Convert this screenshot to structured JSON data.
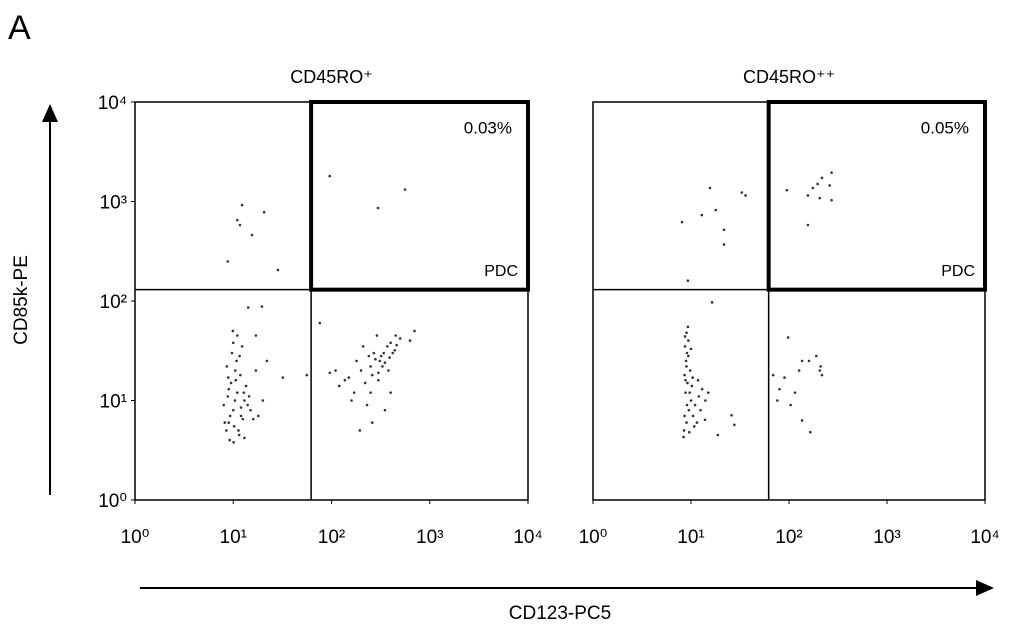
{
  "panel_label": "A",
  "x_axis_title": "CD123-PC5",
  "y_axis_title": "CD85k-PE",
  "chart_data": [
    {
      "type": "scatter",
      "title": "CD45RO⁺",
      "log_x": true,
      "log_y": true,
      "color": "#333333",
      "xlim": [
        1,
        10000
      ],
      "ylim": [
        1,
        10000
      ],
      "xticks": [
        {
          "value": 1,
          "label": "10⁰"
        },
        {
          "value": 10,
          "label": "10¹"
        },
        {
          "value": 100,
          "label": "10²"
        },
        {
          "value": 1000,
          "label": "10³"
        },
        {
          "value": 10000,
          "label": "10⁴"
        }
      ],
      "yticks": [
        {
          "value": 1,
          "label": "10⁰"
        },
        {
          "value": 10,
          "label": "10¹"
        },
        {
          "value": 100,
          "label": "10²"
        },
        {
          "value": 1000,
          "label": "10³"
        },
        {
          "value": 10000,
          "label": "10⁴"
        }
      ],
      "quadrant_x": 62,
      "quadrant_y": 130,
      "gate_label": "PDC",
      "gate_percent": "0.03%",
      "x": [
        12.3,
        8.8,
        11.7,
        15.5,
        20.6,
        28.5,
        11,
        96,
        297,
        560,
        9,
        10,
        11,
        8.5,
        12,
        9.5,
        10.5,
        8,
        13,
        11.5,
        9.2,
        10.2,
        12.5,
        8.8,
        14,
        10.8,
        9.7,
        11.8,
        8.6,
        13.5,
        10,
        11,
        9,
        12,
        10.4,
        9.3,
        11.3,
        13,
        8.2,
        10.6,
        12.8,
        15,
        16,
        14.5,
        17,
        9.9,
        12.3,
        11.6,
        8.9,
        10.1,
        14.2,
        19.6,
        17,
        22,
        32,
        56,
        18,
        20,
        76,
        96,
        137,
        194,
        310,
        440,
        630,
        700,
        120,
        150,
        170,
        200,
        220,
        250,
        260,
        280,
        300,
        320,
        340,
        350,
        370,
        390,
        400,
        420,
        460,
        500,
        250,
        230,
        180,
        210,
        290,
        350,
        400,
        160,
        270,
        330,
        300,
        240,
        380,
        450,
        110,
        260
      ],
      "values": [
        920,
        250,
        580,
        460,
        780,
        205,
        650,
        1800,
        860,
        1320,
        6,
        8,
        12,
        5,
        7,
        15,
        20,
        9,
        10,
        4.5,
        4,
        5.5,
        6.5,
        11,
        9,
        25,
        30,
        18,
        22,
        14,
        38,
        45,
        13,
        8.5,
        10,
        7,
        5,
        4.2,
        6,
        16,
        12,
        8,
        6.5,
        11,
        20,
        50,
        35,
        28,
        17,
        3.8,
        86,
        88,
        45,
        25,
        17,
        18,
        7,
        10,
        60,
        19,
        16,
        5,
        25,
        32,
        40,
        50,
        14,
        17,
        12,
        20,
        15,
        22,
        18,
        26,
        19,
        28,
        30,
        24,
        35,
        27,
        38,
        30,
        36,
        42,
        12,
        9,
        25,
        35,
        45,
        8,
        12,
        10,
        30,
        22,
        16,
        28,
        20,
        45,
        20,
        6
      ]
    },
    {
      "type": "scatter",
      "title": "CD45RO⁺⁺",
      "log_x": true,
      "log_y": true,
      "color": "#333333",
      "xlim": [
        1,
        10000
      ],
      "ylim": [
        1,
        10000
      ],
      "xticks": [
        {
          "value": 1,
          "label": "10⁰"
        },
        {
          "value": 10,
          "label": "10¹"
        },
        {
          "value": 100,
          "label": "10²"
        },
        {
          "value": 1000,
          "label": "10³"
        },
        {
          "value": 10000,
          "label": "10⁴"
        }
      ],
      "quadrant_x": 62,
      "quadrant_y": 130,
      "gate_label": "PDC",
      "gate_percent": "0.05%",
      "x": [
        8.1,
        12.9,
        17.9,
        15.6,
        21.7,
        21.7,
        33,
        36,
        9.3,
        16.4,
        95,
        156,
        175,
        196,
        217,
        272,
        260,
        206,
        272,
        156,
        8.5,
        9,
        9.5,
        10,
        8.8,
        9.2,
        8.6,
        9.8,
        8.9,
        9.1,
        8.7,
        9.4,
        9,
        9.3,
        10.5,
        11,
        12,
        13,
        10.2,
        11.5,
        8.4,
        9.6,
        10.8,
        12.5,
        14,
        9,
        8.8,
        9.7,
        10.4,
        9.1,
        8.6,
        15,
        11.8,
        9.4,
        8.7,
        10,
        13.9,
        18.8,
        25.9,
        27.7,
        98,
        69,
        90,
        127,
        136,
        160,
        206,
        217,
        80,
        76,
        104,
        136,
        165,
        115,
        190,
        210
      ],
      "values": [
        620,
        730,
        820,
        1370,
        520,
        370,
        1230,
        1150,
        160,
        97,
        1300,
        1150,
        1370,
        1500,
        1730,
        1950,
        1450,
        1080,
        1030,
        580,
        5,
        6,
        8,
        10,
        12,
        15,
        18,
        20,
        25,
        30,
        35,
        40,
        48,
        55,
        7,
        9,
        11,
        13,
        14,
        6,
        4.3,
        4.8,
        5.5,
        8,
        10,
        22,
        16,
        12,
        17,
        9,
        7,
        12,
        16,
        28,
        44,
        33,
        6.4,
        4.5,
        7.1,
        5.7,
        43,
        18,
        17,
        20,
        25,
        25,
        20,
        18,
        13,
        10,
        9,
        6.3,
        4.8,
        12,
        28,
        22
      ]
    }
  ]
}
